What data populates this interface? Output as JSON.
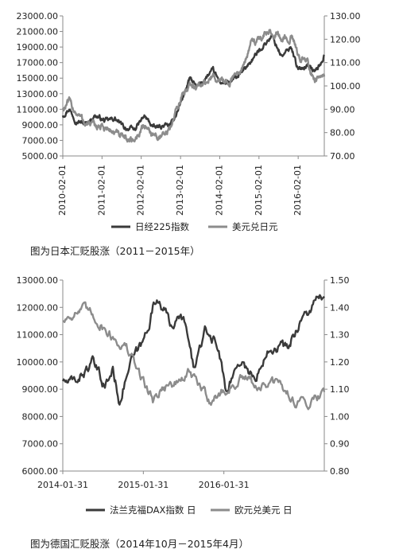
{
  "chart_data": [
    {
      "type": "line",
      "caption": "图为日本汇贬股涨（2011－2015年）",
      "y_left": {
        "ticks": [
          "23000.00",
          "21000.00",
          "19000.00",
          "17000.00",
          "15000.00",
          "13000.00",
          "11000.00",
          "9000.00",
          "7000.00",
          "5000.00"
        ],
        "lim": [
          5000,
          23000
        ]
      },
      "y_right": {
        "ticks": [
          "130.00",
          "120.00",
          "110.00",
          "100.00",
          "90.00",
          "80.00",
          "70.00"
        ],
        "lim": [
          70,
          130
        ]
      },
      "x_ticks": [
        "2010-02-01",
        "2011-02-01",
        "2012-02-01",
        "2013-02-01",
        "2014-02-01",
        "2015-02-01",
        "2016-02-01"
      ],
      "x_lim": [
        "2010-02-01",
        "2016-10-01"
      ],
      "series": [
        {
          "name": "日经225指数",
          "axis": "left",
          "color": "#3a3a3a",
          "points": [
            [
              "2010-02-01",
              10200
            ],
            [
              "2010-04-01",
              11100
            ],
            [
              "2010-06-01",
              9600
            ],
            [
              "2010-09-01",
              9100
            ],
            [
              "2010-12-01",
              10200
            ],
            [
              "2011-03-01",
              9500
            ],
            [
              "2011-06-01",
              9800
            ],
            [
              "2011-09-01",
              8600
            ],
            [
              "2011-12-01",
              8400
            ],
            [
              "2012-03-01",
              10100
            ],
            [
              "2012-06-01",
              8600
            ],
            [
              "2012-09-01",
              8900
            ],
            [
              "2012-11-01",
              8900
            ],
            [
              "2013-01-01",
              10700
            ],
            [
              "2013-05-01",
              15000
            ],
            [
              "2013-07-01",
              13800
            ],
            [
              "2013-12-01",
              16000
            ],
            [
              "2014-02-01",
              14500
            ],
            [
              "2014-05-01",
              14300
            ],
            [
              "2014-09-01",
              15800
            ],
            [
              "2014-12-01",
              17400
            ],
            [
              "2015-03-01",
              19000
            ],
            [
              "2015-06-01",
              20400
            ],
            [
              "2015-09-01",
              17800
            ],
            [
              "2015-12-01",
              19000
            ],
            [
              "2016-02-01",
              16000
            ],
            [
              "2016-05-01",
              16800
            ],
            [
              "2016-07-01",
              15800
            ],
            [
              "2016-09-01",
              16900
            ],
            [
              "2016-10-01",
              18000
            ]
          ]
        },
        {
          "name": "美元兑日元",
          "axis": "right",
          "color": "#8c8c8c",
          "points": [
            [
              "2010-02-01",
              90
            ],
            [
              "2010-04-01",
              93
            ],
            [
              "2010-06-01",
              89
            ],
            [
              "2010-09-01",
              84
            ],
            [
              "2010-12-01",
              83
            ],
            [
              "2011-03-01",
              82
            ],
            [
              "2011-06-01",
              80
            ],
            [
              "2011-09-01",
              77
            ],
            [
              "2011-12-01",
              77
            ],
            [
              "2012-03-01",
              83
            ],
            [
              "2012-06-01",
              79
            ],
            [
              "2012-09-01",
              78
            ],
            [
              "2012-11-01",
              82
            ],
            [
              "2013-01-01",
              91
            ],
            [
              "2013-05-01",
              102
            ],
            [
              "2013-07-01",
              99
            ],
            [
              "2013-12-01",
              104
            ],
            [
              "2014-02-01",
              102
            ],
            [
              "2014-05-01",
              102
            ],
            [
              "2014-09-01",
              108
            ],
            [
              "2014-12-01",
              119
            ],
            [
              "2015-03-01",
              121
            ],
            [
              "2015-06-01",
              124
            ],
            [
              "2015-09-01",
              120
            ],
            [
              "2015-12-01",
              121
            ],
            [
              "2016-02-01",
              113
            ],
            [
              "2016-05-01",
              110
            ],
            [
              "2016-07-01",
              102
            ],
            [
              "2016-09-01",
              103
            ],
            [
              "2016-10-01",
              104
            ]
          ]
        }
      ]
    },
    {
      "type": "line",
      "caption": "图为德国汇贬股涨（2014年10月－2015年4月）",
      "y_left": {
        "ticks": [
          "13000.00",
          "12000.00",
          "11000.00",
          "10000.00",
          "9000.00",
          "8000.00",
          "7000.00",
          "6000.00"
        ],
        "lim": [
          6000,
          13000
        ]
      },
      "y_right": {
        "ticks": [
          "1.50",
          "1.40",
          "1.30",
          "1.20",
          "1.10",
          "1.00",
          "0.90",
          "0.80"
        ],
        "lim": [
          0.8,
          1.5
        ]
      },
      "x_ticks": [
        "2014-01-31",
        "2015-01-31",
        "2016-01-31"
      ],
      "x_lim": [
        "2014-01-31",
        "2017-04-30"
      ],
      "series": [
        {
          "name": "法兰克福DAX指数 日",
          "axis": "left",
          "color": "#3a3a3a",
          "points": [
            [
              "2014-01-31",
              9300
            ],
            [
              "2014-03-15",
              9200
            ],
            [
              "2014-06-15",
              9950
            ],
            [
              "2014-08-10",
              9100
            ],
            [
              "2014-09-15",
              9700
            ],
            [
              "2014-10-15",
              8600
            ],
            [
              "2014-12-01",
              9900
            ],
            [
              "2015-01-31",
              10700
            ],
            [
              "2015-03-15",
              12000
            ],
            [
              "2015-04-10",
              12400
            ],
            [
              "2015-06-01",
              11400
            ],
            [
              "2015-08-01",
              11600
            ],
            [
              "2015-09-15",
              9800
            ],
            [
              "2015-11-10",
              11100
            ],
            [
              "2015-12-31",
              10700
            ],
            [
              "2016-02-10",
              9000
            ],
            [
              "2016-04-15",
              10100
            ],
            [
              "2016-06-27",
              9300
            ],
            [
              "2016-08-15",
              10600
            ],
            [
              "2016-10-15",
              10600
            ],
            [
              "2016-11-15",
              10500
            ],
            [
              "2017-01-15",
              11600
            ],
            [
              "2017-02-15",
              11800
            ],
            [
              "2017-03-25",
              12200
            ],
            [
              "2017-04-30",
              12400
            ]
          ]
        },
        {
          "name": "欧元兑美元 日",
          "axis": "right",
          "color": "#8c8c8c",
          "points": [
            [
              "2014-01-31",
              1.35
            ],
            [
              "2014-03-15",
              1.38
            ],
            [
              "2014-05-05",
              1.39
            ],
            [
              "2014-07-01",
              1.36
            ],
            [
              "2014-09-15",
              1.29
            ],
            [
              "2014-11-15",
              1.25
            ],
            [
              "2015-01-31",
              1.13
            ],
            [
              "2015-03-15",
              1.06
            ],
            [
              "2015-04-30",
              1.11
            ],
            [
              "2015-06-30",
              1.12
            ],
            [
              "2015-08-25",
              1.16
            ],
            [
              "2015-11-30",
              1.06
            ],
            [
              "2016-01-31",
              1.09
            ],
            [
              "2016-04-30",
              1.14
            ],
            [
              "2016-06-30",
              1.11
            ],
            [
              "2016-09-30",
              1.12
            ],
            [
              "2016-12-31",
              1.05
            ],
            [
              "2017-02-28",
              1.06
            ],
            [
              "2017-04-30",
              1.09
            ]
          ]
        }
      ]
    }
  ]
}
